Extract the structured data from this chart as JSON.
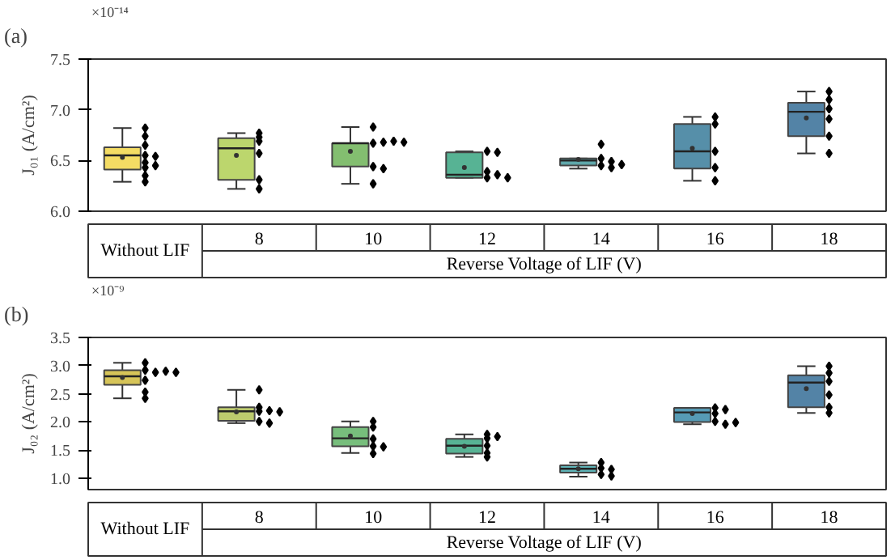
{
  "chart_data": [
    {
      "type": "box",
      "annotations": [
        "(a)",
        "×10⁻¹⁴"
      ],
      "ylabel": "J₀₁ (A/cm²)",
      "xlabel": "Reverse Voltage of LIF (V)",
      "categories": [
        "Without LIF",
        "8",
        "10",
        "12",
        "14",
        "16",
        "18"
      ],
      "ylim": [
        6.0,
        7.5
      ],
      "yticks": [
        {
          "value": 6.0,
          "label": "6.0"
        },
        6.5,
        {
          "value": 7.0,
          "label": "7.0"
        },
        7.5
      ],
      "colors": [
        "#f0d030",
        "#a6c83c",
        "#5aa840",
        "#1f9a70",
        "#2a8a8e",
        "#1d6a8c",
        "#1a5a88"
      ],
      "boxes": [
        {
          "low": 6.29,
          "q1": 6.41,
          "median": 6.55,
          "q3": 6.63,
          "high": 6.82,
          "mean": 6.53
        },
        {
          "low": 6.22,
          "q1": 6.31,
          "median": 6.62,
          "q3": 6.72,
          "high": 6.77,
          "mean": 6.55
        },
        {
          "low": 6.27,
          "q1": 6.44,
          "median": 6.67,
          "q3": 6.67,
          "high": 6.83,
          "mean": 6.59
        },
        {
          "low": 6.33,
          "q1": 6.33,
          "median": 6.36,
          "q3": 6.58,
          "high": 6.59,
          "mean": 6.43
        },
        {
          "low": 6.42,
          "q1": 6.45,
          "median": 6.5,
          "q3": 6.52,
          "high": 6.52,
          "mean": 6.51
        },
        {
          "low": 6.3,
          "q1": 6.42,
          "median": 6.59,
          "q3": 6.86,
          "high": 6.93,
          "mean": 6.62
        },
        {
          "low": 6.57,
          "q1": 6.74,
          "median": 6.98,
          "q3": 7.07,
          "high": 7.18,
          "mean": 6.92
        }
      ],
      "series": [
        {
          "type": "scatter",
          "color": "#000000",
          "marker": "diamond",
          "x": [
            "Without LIF",
            "Without LIF",
            "Without LIF",
            "Without LIF",
            "Without LIF",
            "Without LIF",
            "Without LIF",
            "Without LIF",
            "Without LIF",
            "Without LIF",
            "8",
            "8",
            "8",
            "8",
            "8",
            "8",
            "10",
            "10",
            "10",
            "10",
            "10",
            "10",
            "10",
            "10",
            "12",
            "12",
            "12",
            "12",
            "12",
            "12",
            "14",
            "14",
            "14",
            "14",
            "14",
            "14",
            "16",
            "16",
            "16",
            "16",
            "16",
            "18",
            "18",
            "18",
            "18",
            "18",
            "18"
          ],
          "values": [
            6.82,
            6.74,
            6.65,
            6.55,
            6.48,
            6.43,
            6.35,
            6.29,
            6.54,
            6.45,
            6.77,
            6.69,
            6.57,
            6.31,
            6.22,
            6.73,
            6.83,
            6.67,
            6.68,
            6.69,
            6.68,
            6.44,
            6.42,
            6.27,
            6.59,
            6.58,
            6.39,
            6.33,
            6.36,
            6.33,
            6.66,
            6.52,
            6.49,
            6.45,
            6.43,
            6.46,
            6.93,
            6.86,
            6.59,
            6.43,
            6.3,
            7.18,
            7.1,
            7.01,
            6.91,
            6.74,
            6.57
          ]
        }
      ]
    },
    {
      "type": "box",
      "annotations": [
        "(b)",
        "×10⁻⁹"
      ],
      "ylabel": "J₀₂ (A/cm²)",
      "xlabel": "Reverse Voltage of LIF (V)",
      "categories": [
        "Without LIF",
        "8",
        "10",
        "12",
        "14",
        "16",
        "18"
      ],
      "ylim": [
        0.8,
        3.5
      ],
      "yticks": [
        {
          "value": 1.0,
          "label": "1.0"
        },
        1.5,
        {
          "value": 2.0,
          "label": "2.0"
        },
        2.5,
        {
          "value": 3.0,
          "label": "3.0"
        },
        3.5
      ],
      "colors": [
        "#c8b020",
        "#a6b83c",
        "#4aa850",
        "#1f9a70",
        "#2a9a9e",
        "#1d7a9c",
        "#1a5a88"
      ],
      "boxes": [
        {
          "low": 2.42,
          "q1": 2.66,
          "median": 2.81,
          "q3": 2.92,
          "high": 3.05,
          "mean": 2.79
        },
        {
          "low": 1.98,
          "q1": 2.02,
          "median": 2.19,
          "q3": 2.26,
          "high": 2.57,
          "mean": 2.18
        },
        {
          "low": 1.45,
          "q1": 1.57,
          "median": 1.71,
          "q3": 1.91,
          "high": 2.01,
          "mean": 1.75
        },
        {
          "low": 1.38,
          "q1": 1.44,
          "median": 1.58,
          "q3": 1.7,
          "high": 1.78,
          "mean": 1.57
        },
        {
          "low": 1.03,
          "q1": 1.1,
          "median": 1.17,
          "q3": 1.23,
          "high": 1.28,
          "mean": 1.17
        },
        {
          "low": 1.96,
          "q1": 2.0,
          "median": 2.17,
          "q3": 2.25,
          "high": 2.25,
          "mean": 2.15
        },
        {
          "low": 2.16,
          "q1": 2.26,
          "median": 2.7,
          "q3": 2.83,
          "high": 2.99,
          "mean": 2.59
        }
      ],
      "series": [
        {
          "type": "scatter",
          "color": "#000000",
          "marker": "diamond",
          "x": [
            "Without LIF",
            "Without LIF",
            "Without LIF",
            "Without LIF",
            "Without LIF",
            "Without LIF",
            "Without LIF",
            "Without LIF",
            "8",
            "8",
            "8",
            "8",
            "8",
            "8",
            "8",
            "10",
            "10",
            "10",
            "10",
            "10",
            "10",
            "12",
            "12",
            "12",
            "12",
            "12",
            "12",
            "14",
            "14",
            "14",
            "14",
            "14",
            "16",
            "16",
            "16",
            "16",
            "16",
            "16",
            "18",
            "18",
            "18",
            "18",
            "18",
            "18"
          ],
          "values": [
            3.05,
            2.92,
            2.88,
            2.9,
            2.88,
            2.74,
            2.53,
            2.42,
            2.57,
            2.26,
            2.19,
            2.2,
            2.18,
            2.01,
            1.98,
            2.01,
            1.91,
            1.7,
            1.57,
            1.44,
            1.56,
            1.78,
            1.71,
            1.58,
            1.45,
            1.38,
            1.74,
            1.28,
            1.18,
            1.16,
            1.07,
            1.04,
            2.25,
            2.15,
            2.01,
            1.96,
            2.22,
            1.99,
            2.99,
            2.87,
            2.72,
            2.48,
            2.26,
            2.16
          ]
        }
      ]
    }
  ]
}
